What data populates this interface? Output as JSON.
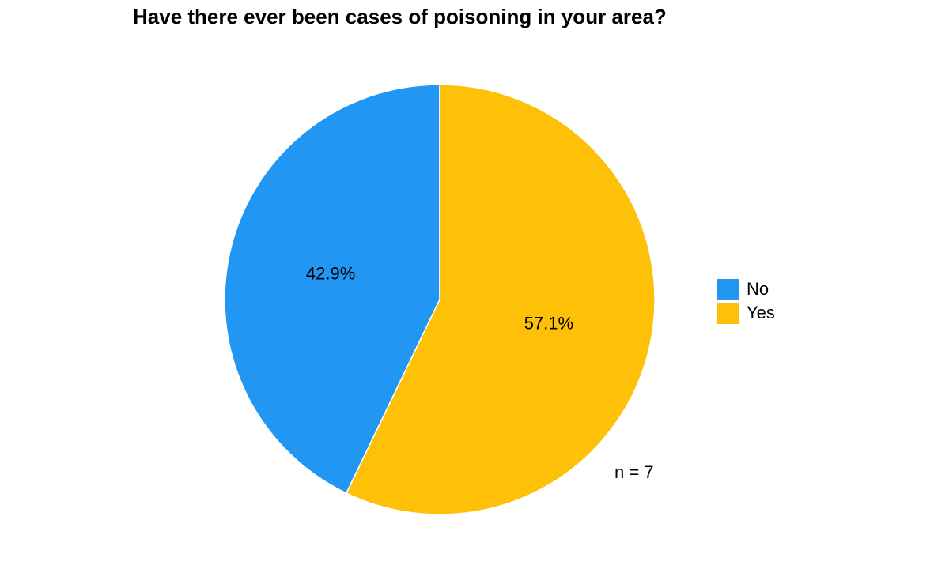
{
  "chart_data": {
    "type": "pie",
    "title": "Have there ever been cases of poisoning in your area?",
    "categories": [
      "No",
      "Yes"
    ],
    "values": [
      3,
      4
    ],
    "percent_labels": [
      "42.9%",
      "57.1%"
    ],
    "colors": [
      "#2196F3",
      "#FFC107"
    ],
    "legend": {
      "placement": "right",
      "entries": [
        "No",
        "Yes"
      ]
    },
    "annotation": "n = 7"
  }
}
